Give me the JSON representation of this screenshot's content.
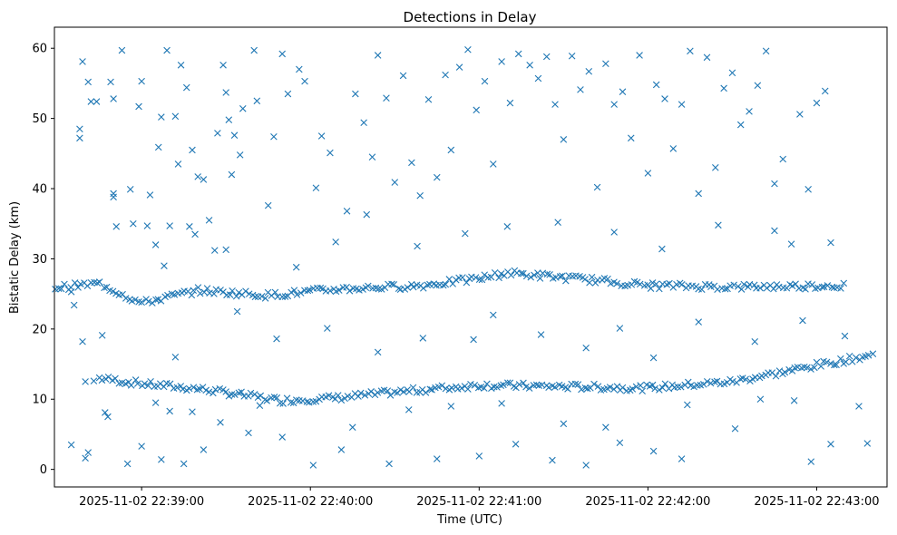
{
  "chart_data": {
    "type": "scatter",
    "title": "Detections in Delay",
    "xlabel": "Time (UTC)",
    "ylabel": "Bistatic Delay (km)",
    "marker": "x",
    "marker_color": "#1f77b4",
    "x_ticks": [
      "2025-11-02 22:39:00",
      "2025-11-02 22:40:00",
      "2025-11-02 22:41:00",
      "2025-11-02 22:42:00",
      "2025-11-02 22:43:00"
    ],
    "y_ticks": [
      0,
      10,
      20,
      30,
      40,
      50,
      60
    ],
    "xlim": [
      "2025-11-02 22:38:29",
      "2025-11-02 22:43:25"
    ],
    "ylim": [
      -2.5,
      63
    ],
    "grid": false,
    "tracks": [
      {
        "description": "lower track",
        "start": [
          "2025-11-02 22:38:45",
          13.0
        ],
        "end": [
          "2025-11-02 22:43:20",
          16.3
        ],
        "waypoints": [
          [
            "2025-11-02 22:38:45",
            13.0
          ],
          [
            "2025-11-02 22:39:00",
            12.2
          ],
          [
            "2025-11-02 22:39:20",
            11.5
          ],
          [
            "2025-11-02 22:39:50",
            9.8
          ],
          [
            "2025-11-02 22:40:10",
            10.2
          ],
          [
            "2025-11-02 22:40:30",
            11.0
          ],
          [
            "2025-11-02 22:41:00",
            12.0
          ],
          [
            "2025-11-02 22:41:30",
            11.8
          ],
          [
            "2025-11-02 22:42:00",
            11.6
          ],
          [
            "2025-11-02 22:42:30",
            12.5
          ],
          [
            "2025-11-02 22:43:00",
            14.8
          ],
          [
            "2025-11-02 22:43:20",
            16.3
          ]
        ]
      },
      {
        "description": "upper track",
        "start": [
          "2025-11-02 22:38:20",
          25.5
        ],
        "end": [
          "2025-11-02 22:43:10",
          26.2
        ],
        "waypoints": [
          [
            "2025-11-02 22:38:20",
            25.5
          ],
          [
            "2025-11-02 22:38:45",
            26.5
          ],
          [
            "2025-11-02 22:39:00",
            23.7
          ],
          [
            "2025-11-02 22:39:20",
            25.5
          ],
          [
            "2025-11-02 22:39:45",
            24.8
          ],
          [
            "2025-11-02 22:40:10",
            25.7
          ],
          [
            "2025-11-02 22:40:40",
            26.2
          ],
          [
            "2025-11-02 22:41:00",
            27.2
          ],
          [
            "2025-11-02 22:41:10",
            28.0
          ],
          [
            "2025-11-02 22:41:40",
            27.0
          ],
          [
            "2025-11-02 22:42:00",
            26.2
          ],
          [
            "2025-11-02 22:42:30",
            26.0
          ],
          [
            "2025-11-02 22:43:10",
            26.2
          ]
        ]
      }
    ],
    "scatter": [
      [
        "2025-11-02 22:38:35",
        25.3
      ],
      [
        "2025-11-02 22:38:36",
        23.4
      ],
      [
        "2025-11-02 22:38:35",
        3.5
      ],
      [
        "2025-11-02 22:38:39",
        58.1
      ],
      [
        "2025-11-02 22:38:38",
        48.5
      ],
      [
        "2025-11-02 22:38:38",
        47.2
      ],
      [
        "2025-11-02 22:38:41",
        55.2
      ],
      [
        "2025-11-02 22:38:42",
        52.4
      ],
      [
        "2025-11-02 22:38:44",
        52.4
      ],
      [
        "2025-11-02 22:38:39",
        18.2
      ],
      [
        "2025-11-02 22:38:40",
        12.5
      ],
      [
        "2025-11-02 22:38:41",
        2.4
      ],
      [
        "2025-11-02 22:38:40",
        1.6
      ],
      [
        "2025-11-02 22:38:43",
        12.6
      ],
      [
        "2025-11-02 22:38:46",
        19.1
      ],
      [
        "2025-11-02 22:38:47",
        8.1
      ],
      [
        "2025-11-02 22:38:48",
        7.5
      ],
      [
        "2025-11-02 22:38:49",
        55.2
      ],
      [
        "2025-11-02 22:38:50",
        52.8
      ],
      [
        "2025-11-02 22:38:50",
        39.3
      ],
      [
        "2025-11-02 22:38:50",
        38.8
      ],
      [
        "2025-11-02 22:38:51",
        34.6
      ],
      [
        "2025-11-02 22:38:53",
        59.7
      ],
      [
        "2025-11-02 22:38:55",
        0.8
      ],
      [
        "2025-11-02 22:38:56",
        39.9
      ],
      [
        "2025-11-02 22:38:57",
        35.0
      ],
      [
        "2025-11-02 22:38:59",
        51.7
      ],
      [
        "2025-11-02 22:39:00",
        55.3
      ],
      [
        "2025-11-02 22:39:02",
        34.7
      ],
      [
        "2025-11-02 22:39:03",
        39.1
      ],
      [
        "2025-11-02 22:39:05",
        32.0
      ],
      [
        "2025-11-02 22:39:06",
        45.9
      ],
      [
        "2025-11-02 22:39:07",
        50.2
      ],
      [
        "2025-11-02 22:39:09",
        59.7
      ],
      [
        "2025-11-02 22:39:08",
        29.0
      ],
      [
        "2025-11-02 22:39:10",
        8.3
      ],
      [
        "2025-11-02 22:39:12",
        50.3
      ],
      [
        "2025-11-02 22:39:13",
        43.5
      ],
      [
        "2025-11-02 22:39:14",
        57.6
      ],
      [
        "2025-11-02 22:39:16",
        54.4
      ],
      [
        "2025-11-02 22:39:17",
        34.6
      ],
      [
        "2025-11-02 22:39:18",
        45.5
      ],
      [
        "2025-11-02 22:39:19",
        33.5
      ],
      [
        "2025-11-02 22:39:20",
        41.7
      ],
      [
        "2025-11-02 22:39:22",
        41.3
      ],
      [
        "2025-11-02 22:39:24",
        35.5
      ],
      [
        "2025-11-02 22:39:26",
        31.2
      ],
      [
        "2025-11-02 22:39:27",
        47.9
      ],
      [
        "2025-11-02 22:39:29",
        57.6
      ],
      [
        "2025-11-02 22:39:30",
        53.7
      ],
      [
        "2025-11-02 22:39:31",
        49.8
      ],
      [
        "2025-11-02 22:39:32",
        42.0
      ],
      [
        "2025-11-02 22:39:33",
        47.6
      ],
      [
        "2025-11-02 22:39:35",
        44.8
      ],
      [
        "2025-11-02 22:39:36",
        51.4
      ],
      [
        "2025-11-02 22:39:40",
        59.7
      ],
      [
        "2025-11-02 22:39:41",
        52.5
      ],
      [
        "2025-11-02 22:39:45",
        37.6
      ],
      [
        "2025-11-02 22:39:47",
        47.4
      ],
      [
        "2025-11-02 22:39:50",
        59.2
      ],
      [
        "2025-11-02 22:39:52",
        53.5
      ],
      [
        "2025-11-02 22:39:56",
        57.0
      ],
      [
        "2025-11-02 22:39:58",
        55.3
      ],
      [
        "2025-11-02 22:40:02",
        40.1
      ],
      [
        "2025-11-02 22:40:04",
        47.5
      ],
      [
        "2025-11-02 22:40:07",
        45.1
      ],
      [
        "2025-11-02 22:40:09",
        32.4
      ],
      [
        "2025-11-02 22:40:13",
        36.8
      ],
      [
        "2025-11-02 22:40:16",
        53.5
      ],
      [
        "2025-11-02 22:40:19",
        49.4
      ],
      [
        "2025-11-02 22:40:22",
        44.5
      ],
      [
        "2025-11-02 22:40:24",
        59.0
      ],
      [
        "2025-11-02 22:40:27",
        52.9
      ],
      [
        "2025-11-02 22:40:30",
        40.9
      ],
      [
        "2025-11-02 22:40:33",
        56.1
      ],
      [
        "2025-11-02 22:40:36",
        43.7
      ],
      [
        "2025-11-02 22:40:39",
        39.0
      ],
      [
        "2025-11-02 22:40:42",
        52.7
      ],
      [
        "2025-11-02 22:40:45",
        41.6
      ],
      [
        "2025-11-02 22:40:48",
        56.2
      ],
      [
        "2025-11-02 22:40:50",
        45.5
      ],
      [
        "2025-11-02 22:40:53",
        57.3
      ],
      [
        "2025-11-02 22:40:56",
        59.8
      ],
      [
        "2025-11-02 22:40:59",
        51.2
      ],
      [
        "2025-11-02 22:41:02",
        55.3
      ],
      [
        "2025-11-02 22:41:05",
        43.5
      ],
      [
        "2025-11-02 22:41:08",
        58.1
      ],
      [
        "2025-11-02 22:41:11",
        52.2
      ],
      [
        "2025-11-02 22:41:14",
        59.2
      ],
      [
        "2025-11-02 22:41:18",
        57.6
      ],
      [
        "2025-11-02 22:41:21",
        55.7
      ],
      [
        "2025-11-02 22:41:24",
        58.8
      ],
      [
        "2025-11-02 22:41:27",
        52.0
      ],
      [
        "2025-11-02 22:41:30",
        47.0
      ],
      [
        "2025-11-02 22:41:33",
        58.9
      ],
      [
        "2025-11-02 22:41:36",
        54.1
      ],
      [
        "2025-11-02 22:41:39",
        56.7
      ],
      [
        "2025-11-02 22:41:42",
        40.2
      ],
      [
        "2025-11-02 22:41:45",
        57.8
      ],
      [
        "2025-11-02 22:41:48",
        52.0
      ],
      [
        "2025-11-02 22:41:51",
        53.8
      ],
      [
        "2025-11-02 22:41:54",
        47.2
      ],
      [
        "2025-11-02 22:41:57",
        59.0
      ],
      [
        "2025-11-02 22:42:00",
        42.2
      ],
      [
        "2025-11-02 22:42:03",
        54.8
      ],
      [
        "2025-11-02 22:42:06",
        52.8
      ],
      [
        "2025-11-02 22:42:09",
        45.7
      ],
      [
        "2025-11-02 22:42:12",
        52.0
      ],
      [
        "2025-11-02 22:42:15",
        59.6
      ],
      [
        "2025-11-02 22:42:18",
        39.3
      ],
      [
        "2025-11-02 22:42:21",
        58.7
      ],
      [
        "2025-11-02 22:42:24",
        43.0
      ],
      [
        "2025-11-02 22:42:27",
        54.3
      ],
      [
        "2025-11-02 22:42:30",
        56.5
      ],
      [
        "2025-11-02 22:42:33",
        49.1
      ],
      [
        "2025-11-02 22:42:36",
        51.0
      ],
      [
        "2025-11-02 22:42:39",
        54.7
      ],
      [
        "2025-11-02 22:42:42",
        59.6
      ],
      [
        "2025-11-02 22:42:45",
        40.7
      ],
      [
        "2025-11-02 22:42:48",
        44.2
      ],
      [
        "2025-11-02 22:42:51",
        32.1
      ],
      [
        "2025-11-02 22:42:54",
        50.6
      ],
      [
        "2025-11-02 22:42:57",
        39.9
      ],
      [
        "2025-11-02 22:43:00",
        52.2
      ],
      [
        "2025-11-02 22:43:03",
        53.9
      ],
      [
        "2025-11-02 22:39:00",
        3.3
      ],
      [
        "2025-11-02 22:39:07",
        1.4
      ],
      [
        "2025-11-02 22:39:15",
        0.8
      ],
      [
        "2025-11-02 22:39:22",
        2.8
      ],
      [
        "2025-11-02 22:39:38",
        5.2
      ],
      [
        "2025-11-02 22:39:50",
        4.6
      ],
      [
        "2025-11-02 22:40:01",
        0.6
      ],
      [
        "2025-11-02 22:40:11",
        2.8
      ],
      [
        "2025-11-02 22:40:28",
        0.8
      ],
      [
        "2025-11-02 22:40:45",
        1.5
      ],
      [
        "2025-11-02 22:41:00",
        1.9
      ],
      [
        "2025-11-02 22:41:13",
        3.6
      ],
      [
        "2025-11-02 22:41:26",
        1.3
      ],
      [
        "2025-11-02 22:41:38",
        0.6
      ],
      [
        "2025-11-02 22:41:50",
        3.8
      ],
      [
        "2025-11-02 22:42:02",
        2.6
      ],
      [
        "2025-11-02 22:42:12",
        1.5
      ],
      [
        "2025-11-02 22:42:31",
        5.8
      ],
      [
        "2025-11-02 22:42:58",
        1.1
      ],
      [
        "2025-11-02 22:43:05",
        3.6
      ],
      [
        "2025-11-02 22:43:18",
        3.7
      ],
      [
        "2025-11-02 22:39:12",
        16.0
      ],
      [
        "2025-11-02 22:39:34",
        22.5
      ],
      [
        "2025-11-02 22:39:48",
        18.6
      ],
      [
        "2025-11-02 22:40:06",
        20.1
      ],
      [
        "2025-11-02 22:40:24",
        16.7
      ],
      [
        "2025-11-02 22:40:40",
        18.7
      ],
      [
        "2025-11-02 22:40:58",
        18.5
      ],
      [
        "2025-11-02 22:41:05",
        22.0
      ],
      [
        "2025-11-02 22:41:22",
        19.2
      ],
      [
        "2025-11-02 22:41:38",
        17.3
      ],
      [
        "2025-11-02 22:41:50",
        20.1
      ],
      [
        "2025-11-02 22:42:02",
        15.9
      ],
      [
        "2025-11-02 22:42:18",
        21.0
      ],
      [
        "2025-11-02 22:42:38",
        18.2
      ],
      [
        "2025-11-02 22:42:55",
        21.2
      ],
      [
        "2025-11-02 22:43:10",
        19.0
      ],
      [
        "2025-11-02 22:39:05",
        9.5
      ],
      [
        "2025-11-02 22:39:18",
        8.2
      ],
      [
        "2025-11-02 22:39:28",
        6.7
      ],
      [
        "2025-11-02 22:39:42",
        9.1
      ],
      [
        "2025-11-02 22:40:15",
        6.0
      ],
      [
        "2025-11-02 22:40:35",
        8.5
      ],
      [
        "2025-11-02 22:40:50",
        9.0
      ],
      [
        "2025-11-02 22:41:08",
        9.4
      ],
      [
        "2025-11-02 22:41:30",
        6.5
      ],
      [
        "2025-11-02 22:41:45",
        6.0
      ],
      [
        "2025-11-02 22:42:14",
        9.2
      ],
      [
        "2025-11-02 22:42:40",
        10.0
      ],
      [
        "2025-11-02 22:42:52",
        9.8
      ],
      [
        "2025-11-02 22:43:15",
        9.0
      ],
      [
        "2025-11-02 22:39:10",
        34.7
      ],
      [
        "2025-11-02 22:39:30",
        31.3
      ],
      [
        "2025-11-02 22:39:55",
        28.8
      ],
      [
        "2025-11-02 22:40:20",
        36.3
      ],
      [
        "2025-11-02 22:40:38",
        31.8
      ],
      [
        "2025-11-02 22:40:55",
        33.6
      ],
      [
        "2025-11-02 22:41:10",
        34.6
      ],
      [
        "2025-11-02 22:41:28",
        35.2
      ],
      [
        "2025-11-02 22:41:48",
        33.8
      ],
      [
        "2025-11-02 22:42:05",
        31.4
      ],
      [
        "2025-11-02 22:42:25",
        34.8
      ],
      [
        "2025-11-02 22:42:45",
        34.0
      ],
      [
        "2025-11-02 22:43:05",
        32.3
      ]
    ]
  }
}
